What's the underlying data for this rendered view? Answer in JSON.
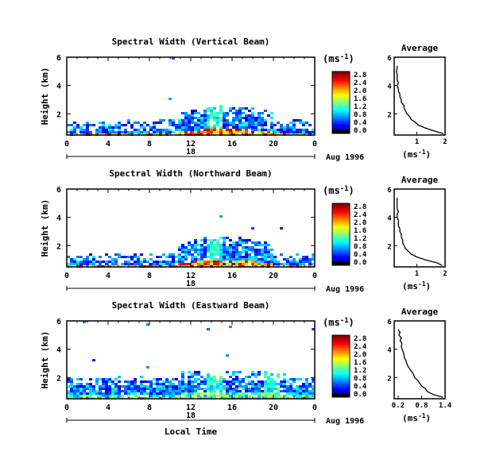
{
  "chart_data": [
    {
      "type": "heatmap",
      "title": "Spectral Width (Vertical Beam)",
      "ylabel": "Height (km)",
      "x_ticks": [
        "0",
        "4",
        "8",
        "12",
        "16",
        "20",
        "0"
      ],
      "y_ticks": [
        "2",
        "4",
        "6"
      ],
      "xlim": [
        0,
        24
      ],
      "ylim": [
        0.5,
        6
      ],
      "date_day": "18",
      "date_label": "Aug 1996",
      "colorbar": {
        "unit": "(ms-1)",
        "ticks": [
          "0.0",
          "0.4",
          "0.8",
          "1.2",
          "1.6",
          "2.0",
          "2.4",
          "2.8"
        ],
        "range": [
          0,
          2.8
        ]
      },
      "average": {
        "title": "Average",
        "xlabel": "(ms-1)",
        "x_ticks": [
          "1",
          "2"
        ],
        "y_ticks": [
          "2",
          "4",
          "6"
        ],
        "xlim": [
          0.2,
          2.0
        ],
        "ylim": [
          0.5,
          6
        ],
        "height": [
          0.6,
          0.8,
          1.0,
          1.2,
          1.4,
          1.6,
          1.8,
          2.0,
          2.2,
          2.4,
          2.6,
          2.8,
          3.0,
          3.2,
          3.4,
          3.6,
          3.8,
          4.0,
          4.2,
          4.4,
          4.6,
          4.8,
          5.0,
          5.2,
          5.4
        ],
        "value": [
          1.95,
          1.6,
          1.3,
          1.05,
          0.95,
          0.8,
          0.75,
          0.65,
          0.6,
          0.55,
          0.55,
          0.45,
          0.45,
          0.4,
          0.4,
          0.35,
          0.35,
          0.3,
          0.35,
          0.3,
          0.3,
          0.3,
          0.28,
          0.3,
          0.3
        ]
      }
    },
    {
      "type": "heatmap",
      "title": "Spectral Width (Northward Beam)",
      "ylabel": "Height (km)",
      "x_ticks": [
        "0",
        "4",
        "8",
        "12",
        "16",
        "20",
        "0"
      ],
      "y_ticks": [
        "2",
        "4",
        "6"
      ],
      "xlim": [
        0,
        24
      ],
      "ylim": [
        0.5,
        6
      ],
      "date_day": "18",
      "date_label": "Aug 1996",
      "colorbar": {
        "unit": "(ms-1)",
        "ticks": [
          "0.0",
          "0.4",
          "0.8",
          "1.2",
          "1.6",
          "2.0",
          "2.4",
          "2.8"
        ],
        "range": [
          0,
          2.8
        ]
      },
      "average": {
        "title": "Average",
        "xlabel": "(ms-1)",
        "x_ticks": [
          "1",
          "2"
        ],
        "y_ticks": [
          "2",
          "4",
          "6"
        ],
        "xlim": [
          0.2,
          2.0
        ],
        "ylim": [
          0.5,
          6
        ],
        "height": [
          0.6,
          0.8,
          1.0,
          1.2,
          1.4,
          1.6,
          1.8,
          2.0,
          2.2,
          2.4,
          2.6,
          2.8,
          3.0,
          3.2,
          3.4,
          3.6,
          3.8,
          4.0,
          4.2,
          4.4,
          4.6,
          4.8,
          5.0,
          5.2,
          5.4
        ],
        "value": [
          1.9,
          1.7,
          1.3,
          1.0,
          0.8,
          0.7,
          0.6,
          0.55,
          0.5,
          0.5,
          0.45,
          0.45,
          0.4,
          0.4,
          0.35,
          0.35,
          0.35,
          0.3,
          0.3,
          0.35,
          0.3,
          0.3,
          0.3,
          0.3,
          0.3
        ]
      }
    },
    {
      "type": "heatmap",
      "title": "Spectral Width (Eastward Beam)",
      "ylabel": "Height (km)",
      "xlabel": "Local Time",
      "x_ticks": [
        "0",
        "4",
        "8",
        "12",
        "16",
        "20",
        "0"
      ],
      "y_ticks": [
        "2",
        "4",
        "6"
      ],
      "xlim": [
        0,
        24
      ],
      "ylim": [
        0.5,
        6
      ],
      "date_day": "18",
      "date_label": "Aug 1996",
      "colorbar": {
        "unit": "(ms-1)",
        "ticks": [
          "0.0",
          "0.4",
          "0.8",
          "1.2",
          "1.6",
          "2.0",
          "2.4",
          "2.8"
        ],
        "range": [
          0,
          2.8
        ]
      },
      "average": {
        "title": "Average",
        "xlabel": "(ms-1)",
        "x_ticks": [
          "0.2",
          "0.8",
          "1.4"
        ],
        "y_ticks": [
          "2",
          "4",
          "6"
        ],
        "xlim": [
          0.1,
          1.4
        ],
        "ylim": [
          0.5,
          6
        ],
        "height": [
          0.6,
          0.8,
          1.0,
          1.2,
          1.4,
          1.6,
          1.8,
          2.0,
          2.2,
          2.4,
          2.6,
          2.8,
          3.0,
          3.2,
          3.4,
          3.6,
          3.8,
          4.0,
          4.2,
          4.4,
          4.6,
          4.8,
          5.0,
          5.2,
          5.4
        ],
        "value": [
          1.35,
          1.1,
          0.95,
          0.9,
          0.8,
          0.75,
          0.7,
          0.62,
          0.6,
          0.55,
          0.5,
          0.45,
          0.42,
          0.4,
          0.36,
          0.35,
          0.33,
          0.3,
          0.28,
          0.3,
          0.25,
          0.28,
          0.22,
          0.25,
          0.2
        ]
      }
    }
  ]
}
